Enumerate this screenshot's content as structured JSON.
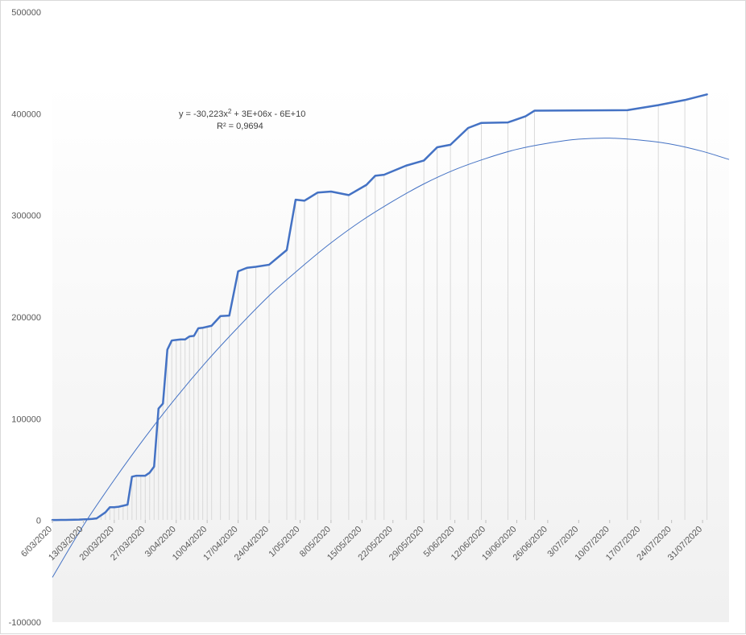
{
  "chart_data": {
    "type": "line",
    "ylim": [
      -100000,
      500000
    ],
    "y_ticks": [
      "500000",
      "400000",
      "300000",
      "200000",
      "100000",
      "0",
      "-100000"
    ],
    "y_tick_values": [
      500000,
      400000,
      300000,
      200000,
      100000,
      0,
      -100000
    ],
    "x_range": [
      "2020-03-06",
      "2020-08-06"
    ],
    "x_ticks": [
      "6/03/2020",
      "13/03/2020",
      "20/03/2020",
      "27/03/2020",
      "3/04/2020",
      "10/04/2020",
      "17/04/2020",
      "24/04/2020",
      "1/05/2020",
      "8/05/2020",
      "15/05/2020",
      "22/05/2020",
      "29/05/2020",
      "5/06/2020",
      "12/06/2020",
      "19/06/2020",
      "26/06/2020",
      "3/07/2020",
      "10/07/2020",
      "17/07/2020",
      "24/07/2020",
      "31/07/2020"
    ],
    "x_tick_dates": [
      "2020-03-06",
      "2020-03-13",
      "2020-03-20",
      "2020-03-27",
      "2020-04-03",
      "2020-04-10",
      "2020-04-17",
      "2020-04-24",
      "2020-05-01",
      "2020-05-08",
      "2020-05-15",
      "2020-05-22",
      "2020-05-29",
      "2020-06-05",
      "2020-06-12",
      "2020-06-19",
      "2020-06-26",
      "2020-07-03",
      "2020-07-10",
      "2020-07-17",
      "2020-07-24",
      "2020-07-31"
    ],
    "grid": "vertical drop lines at data points",
    "series": [
      {
        "color": "#4472c4",
        "x": [
          "2020-03-06",
          "2020-03-07",
          "2020-03-08",
          "2020-03-09",
          "2020-03-10",
          "2020-03-11",
          "2020-03-12",
          "2020-03-13",
          "2020-03-14",
          "2020-03-15",
          "2020-03-16",
          "2020-03-17",
          "2020-03-18",
          "2020-03-19",
          "2020-03-20",
          "2020-03-21",
          "2020-03-22",
          "2020-03-23",
          "2020-03-24",
          "2020-03-25",
          "2020-03-26",
          "2020-03-27",
          "2020-03-28",
          "2020-03-29",
          "2020-03-30",
          "2020-03-31",
          "2020-04-01",
          "2020-04-02",
          "2020-04-03",
          "2020-04-04",
          "2020-04-05",
          "2020-04-06",
          "2020-04-07",
          "2020-04-08",
          "2020-04-09",
          "2020-04-10",
          "2020-04-11",
          "2020-04-13",
          "2020-04-15",
          "2020-04-17",
          "2020-04-19",
          "2020-04-21",
          "2020-04-24",
          "2020-04-28",
          "2020-04-30",
          "2020-05-02",
          "2020-05-05",
          "2020-05-08",
          "2020-05-12",
          "2020-05-16",
          "2020-05-18",
          "2020-05-20",
          "2020-05-25",
          "2020-05-29",
          "2020-06-01",
          "2020-06-04",
          "2020-06-08",
          "2020-06-11",
          "2020-06-17",
          "2020-06-21",
          "2020-06-23",
          "2020-07-14",
          "2020-07-21",
          "2020-07-27",
          "2020-08-01"
        ],
        "y": [
          400,
          400,
          500,
          500,
          600,
          700,
          800,
          1000,
          1200,
          1500,
          2000,
          5000,
          8000,
          13000,
          13000,
          13500,
          14500,
          15500,
          43000,
          44000,
          44000,
          44000,
          47000,
          53000,
          110000,
          115000,
          168000,
          177000,
          177500,
          178000,
          178000,
          181000,
          181500,
          189000,
          189500,
          190500,
          191500,
          201000,
          201500,
          245000,
          248500,
          249500,
          251500,
          266000,
          315500,
          314500,
          322500,
          323500,
          320000,
          330000,
          339000,
          340000,
          349000,
          354000,
          367000,
          369500,
          386000,
          391000,
          391500,
          397500,
          403000,
          403500,
          408500,
          413500,
          419000
        ]
      },
      {
        "type": "trendline",
        "fit": "polynomial order 2",
        "color": "#4472c4",
        "x": [
          "2020-03-06",
          "2020-03-13",
          "2020-03-20",
          "2020-03-27",
          "2020-04-03",
          "2020-04-10",
          "2020-04-17",
          "2020-04-24",
          "2020-05-01",
          "2020-05-08",
          "2020-05-15",
          "2020-05-22",
          "2020-05-29",
          "2020-06-05",
          "2020-06-12",
          "2020-06-19",
          "2020-06-26",
          "2020-07-03",
          "2020-07-10",
          "2020-07-17",
          "2020-07-24",
          "2020-07-31",
          "2020-08-06"
        ],
        "y": [
          -56000,
          -5000,
          40000,
          82000,
          121000,
          157000,
          190000,
          221000,
          248000,
          273000,
          295000,
          314000,
          331000,
          345000,
          356000,
          365000,
          371000,
          375000,
          376000,
          374000,
          370000,
          363000,
          355000
        ]
      }
    ],
    "annotations": [
      "y = -30,223x",
      "2",
      " + 3E+06x - 6E+10",
      "R² = 0,9694"
    ]
  }
}
